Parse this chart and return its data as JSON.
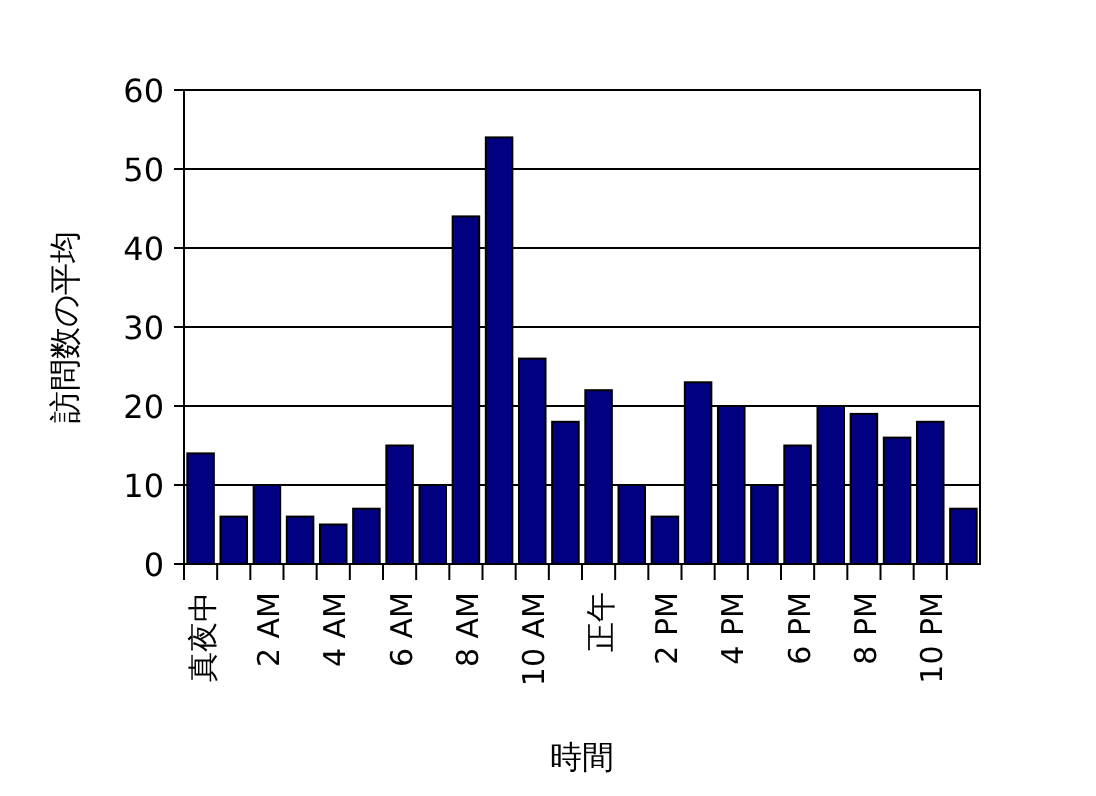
{
  "chart_data": {
    "type": "bar",
    "xlabel": "時間",
    "ylabel": "訪問数の平均",
    "categories": [
      "真夜中",
      null,
      "2 AM",
      null,
      "4 AM",
      null,
      "6 AM",
      null,
      "8 AM",
      null,
      "10 AM",
      null,
      "正午",
      null,
      "2 PM",
      null,
      "4 PM",
      null,
      "6 PM",
      null,
      "8 PM",
      null,
      "10 PM",
      null
    ],
    "values": [
      14,
      6,
      10,
      6,
      5,
      7,
      15,
      10,
      44,
      54,
      26,
      18,
      22,
      10,
      6,
      23,
      20,
      10,
      15,
      20,
      19,
      16,
      18,
      7
    ],
    "color": "#000080",
    "ylim": [
      0,
      60
    ],
    "yticks": [
      0,
      10,
      20,
      30,
      40,
      50,
      60
    ],
    "grid": "y"
  }
}
